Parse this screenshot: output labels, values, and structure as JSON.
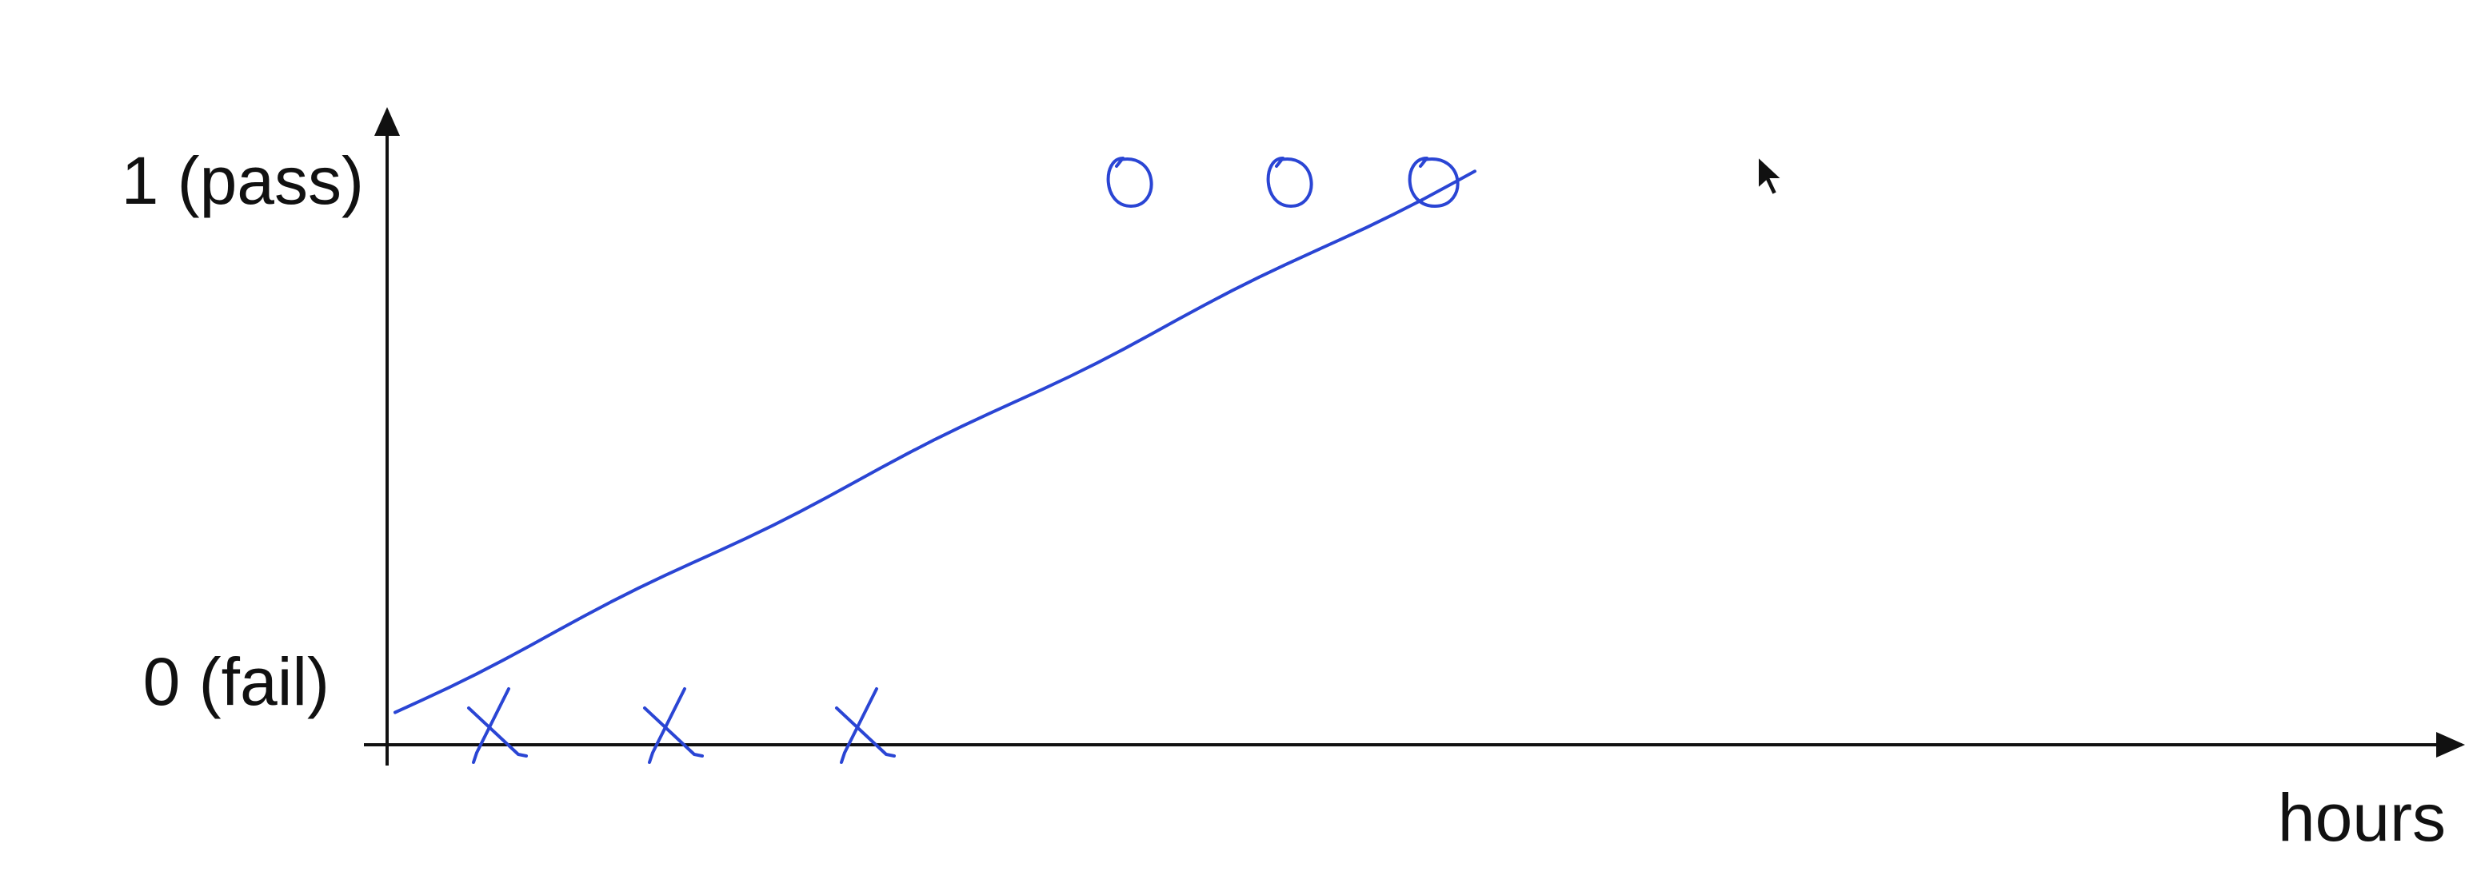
{
  "chart_data": {
    "type": "scatter",
    "title": "",
    "xlabel": "hours",
    "ylabel": "",
    "y_ticks": [
      {
        "value": 0,
        "label": "0 (fail)"
      },
      {
        "value": 1,
        "label": "1 (pass)"
      }
    ],
    "ylim": [
      0,
      1
    ],
    "xlim": [
      0,
      10
    ],
    "series": [
      {
        "marker": "x",
        "points": [
          {
            "x": 0.65,
            "y": 0
          },
          {
            "x": 1.75,
            "y": 0
          },
          {
            "x": 2.95,
            "y": 0
          }
        ]
      },
      {
        "marker": "o",
        "points": [
          {
            "x": 4.65,
            "y": 1
          },
          {
            "x": 5.65,
            "y": 1
          },
          {
            "x": 6.55,
            "y": 1
          }
        ]
      }
    ],
    "fit_line": {
      "type": "line",
      "points": [
        {
          "x": 0.05,
          "y": 0.03
        },
        {
          "x": 6.8,
          "y": 1.02
        }
      ]
    },
    "grid": false,
    "legend": "none",
    "colors": {
      "ink": "#2a45d4",
      "axis": "#111111",
      "background": "#ffffff"
    }
  }
}
